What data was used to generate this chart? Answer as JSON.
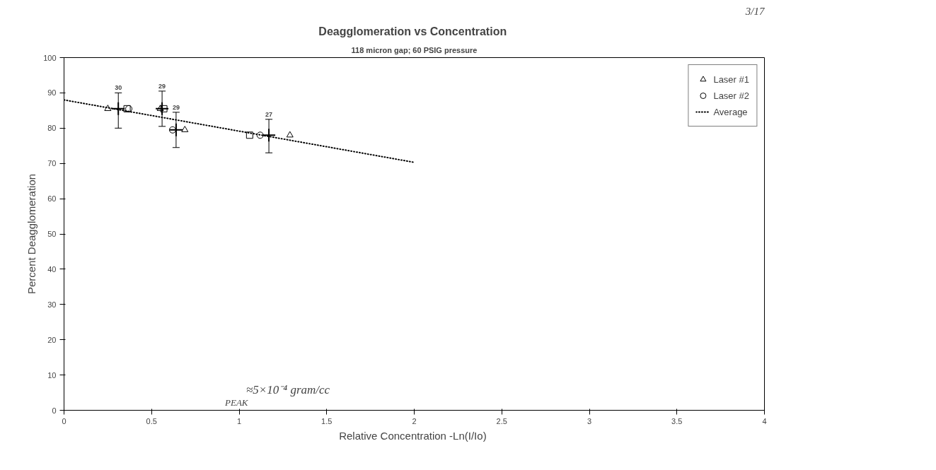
{
  "chart_data": {
    "type": "scatter",
    "title": "Deagglomeration vs  Concentration",
    "subtitle": "118 micron gap; 60 PSIG pressure",
    "xlabel": "Relative Concentration  -Ln(I/Io)",
    "ylabel": "Percent Deagglomeration",
    "xlim": [
      0,
      4
    ],
    "ylim": [
      0,
      100
    ],
    "xticks": [
      0,
      0.5,
      1,
      1.5,
      2,
      2.5,
      3,
      3.5,
      4
    ],
    "yticks": [
      0,
      10,
      20,
      30,
      40,
      50,
      60,
      70,
      80,
      90,
      100
    ],
    "grid": false,
    "legend": "top right",
    "series": [
      {
        "color": "#000000",
        "marker": "square",
        "x": [
          0.36,
          0.57,
          1.06
        ],
        "values": [
          85.5,
          85.5,
          78
        ]
      },
      {
        "name": "Laser #1",
        "color": "#000000",
        "marker": "triangle",
        "x": [
          0.25,
          0.55,
          0.69,
          1.29
        ],
        "values": [
          85.5,
          85.5,
          79.5,
          78
        ]
      },
      {
        "name": "Laser #2",
        "color": "#000000",
        "marker": "circle",
        "x": [
          0.37,
          0.62,
          1.12
        ],
        "values": [
          85.5,
          79.5,
          78
        ]
      },
      {
        "color": "#000000",
        "marker": "cross",
        "x": [
          0.31,
          0.56,
          0.64,
          1.17
        ],
        "values": [
          85.5,
          85.5,
          79.5,
          78
        ],
        "errors": [
          [
            80,
            90
          ],
          [
            80.5,
            90.5
          ],
          [
            74.5,
            84.5
          ],
          [
            73,
            82.5
          ]
        ]
      },
      {
        "name": "Average",
        "type": "line",
        "line_style": "dotted",
        "color": "#000000",
        "x": [
          0,
          2
        ],
        "values": [
          88,
          70.3
        ]
      }
    ],
    "annotations": [
      {
        "text": "30",
        "x": 0.31,
        "y": 90
      },
      {
        "text": "29",
        "x": 0.56,
        "y": 90.5
      },
      {
        "text": "29",
        "x": 0.64,
        "y": 84.5
      },
      {
        "text": "27",
        "x": 1.17,
        "y": 82.5
      },
      "≈5×10⁻⁴ gram/cc",
      "PEAK",
      "3/17"
    ]
  }
}
